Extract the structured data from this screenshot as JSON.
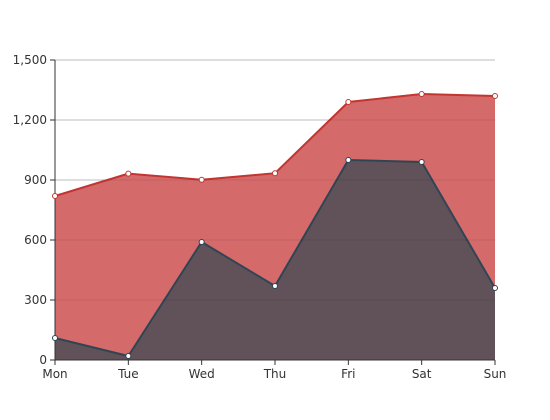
{
  "chart_data": {
    "type": "area",
    "categories": [
      "Mon",
      "Tue",
      "Wed",
      "Thu",
      "Fri",
      "Sat",
      "Sun"
    ],
    "series": [
      {
        "values": [
          820,
          932,
          901,
          934,
          1290,
          1330,
          1320
        ],
        "color": "#c23531",
        "fill": "#d46a6a"
      },
      {
        "values": [
          110,
          20,
          590,
          370,
          1000,
          990,
          360
        ],
        "color": "#2f4554",
        "fill": "#61525a"
      }
    ],
    "ylim": [
      0,
      1500
    ],
    "yticks": [
      0,
      300,
      600,
      900,
      1200,
      1500
    ],
    "ytick_labels": [
      "0",
      "300",
      "600",
      "900",
      "1,200",
      "1,500"
    ],
    "grid": true,
    "legend": "none"
  }
}
